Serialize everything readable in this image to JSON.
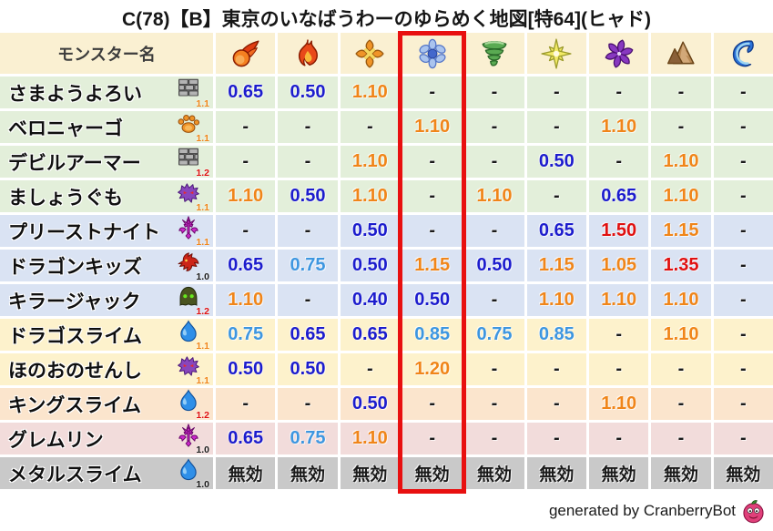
{
  "title": "C(78)【B】東京のいなばうわーのゆらめく地図[特64](ヒャド)",
  "footer": {
    "text": "generated by CranberryBot",
    "icon": "cranberry-slime-icon"
  },
  "colors": {
    "header_bg": "#faf0d2",
    "row_green": "#e3efda",
    "row_blue": "#dae3f3",
    "row_yellow": "#fdf2cc",
    "row_peach": "#fbe5cd",
    "row_pink": "#f2dcdb",
    "row_gray": "#c9c9c9",
    "value_resist_strong": "#1c1ccd",
    "value_resist_mild": "#3d96e0",
    "value_weak_mild": "#f08519",
    "value_weak_strong": "#e01010",
    "value_neutral": "#1a1a1a",
    "highlight_border": "#e81010"
  },
  "chart_data": {
    "type": "table",
    "title": "C(78)【B】東京のいなばうわーのゆらめく地図[特64](ヒャド)",
    "row_header": "モンスター名",
    "column_icons": [
      "fireball-icon",
      "flame-icon",
      "explosion-icon",
      "snowflake-icon",
      "tornado-icon",
      "spark-icon",
      "pinwheel-icon",
      "mountain-icon",
      "wave-icon"
    ],
    "highlight_column_index": 3,
    "highlight_column_icon": "snowflake-icon",
    "rows": [
      {
        "name": "さまようよろい",
        "family_icon": "brick-icon",
        "family_multiplier": "1.1",
        "multiplier_color": "orange",
        "row_color": "green",
        "values": [
          "0.65",
          "0.50",
          "1.10",
          "-",
          "-",
          "-",
          "-",
          "-",
          "-"
        ]
      },
      {
        "name": "ベロニャーゴ",
        "family_icon": "paw-icon",
        "family_multiplier": "1.1",
        "multiplier_color": "orange",
        "row_color": "green",
        "values": [
          "-",
          "-",
          "-",
          "1.10",
          "-",
          "-",
          "1.10",
          "-",
          "-"
        ]
      },
      {
        "name": "デビルアーマー",
        "family_icon": "brick-icon",
        "family_multiplier": "1.2",
        "multiplier_color": "red",
        "row_color": "green",
        "values": [
          "-",
          "-",
          "1.10",
          "-",
          "-",
          "0.50",
          "-",
          "1.10",
          "-"
        ]
      },
      {
        "name": "ましょうぐも",
        "family_icon": "bug-icon",
        "family_multiplier": "1.1",
        "multiplier_color": "orange",
        "row_color": "green",
        "values": [
          "1.10",
          "0.50",
          "1.10",
          "-",
          "1.10",
          "-",
          "0.65",
          "1.10",
          "-"
        ]
      },
      {
        "name": "プリーストナイト",
        "family_icon": "trident-icon",
        "family_multiplier": "1.1",
        "multiplier_color": "orange",
        "row_color": "blue",
        "values": [
          "-",
          "-",
          "0.50",
          "-",
          "-",
          "0.65",
          "1.50",
          "1.15",
          "-"
        ]
      },
      {
        "name": "ドラゴンキッズ",
        "family_icon": "dragon-icon",
        "family_multiplier": "1.0",
        "multiplier_color": "black",
        "row_color": "blue",
        "values": [
          "0.65",
          "0.75",
          "0.50",
          "1.15",
          "0.50",
          "1.15",
          "1.05",
          "1.35",
          "-"
        ]
      },
      {
        "name": "キラージャック",
        "family_icon": "helmet-icon",
        "family_multiplier": "1.2",
        "multiplier_color": "red",
        "row_color": "blue",
        "values": [
          "1.10",
          "-",
          "0.40",
          "0.50",
          "-",
          "1.10",
          "1.10",
          "1.10",
          "-"
        ]
      },
      {
        "name": "ドラゴスライム",
        "family_icon": "slime-icon",
        "family_multiplier": "1.1",
        "multiplier_color": "orange",
        "row_color": "yellow",
        "values": [
          "0.75",
          "0.65",
          "0.65",
          "0.85",
          "0.75",
          "0.85",
          "-",
          "1.10",
          "-"
        ]
      },
      {
        "name": "ほのおのせんし",
        "family_icon": "bug-icon",
        "family_multiplier": "1.1",
        "multiplier_color": "orange",
        "row_color": "yellow",
        "values": [
          "0.50",
          "0.50",
          "-",
          "1.20",
          "-",
          "-",
          "-",
          "-",
          "-"
        ]
      },
      {
        "name": "キングスライム",
        "family_icon": "slime-icon",
        "family_multiplier": "1.2",
        "multiplier_color": "red",
        "row_color": "peach",
        "values": [
          "-",
          "-",
          "0.50",
          "-",
          "-",
          "-",
          "1.10",
          "-",
          "-"
        ]
      },
      {
        "name": "グレムリン",
        "family_icon": "trident-icon",
        "family_multiplier": "1.0",
        "multiplier_color": "black",
        "row_color": "pink",
        "values": [
          "0.65",
          "0.75",
          "1.10",
          "-",
          "-",
          "-",
          "-",
          "-",
          "-"
        ]
      },
      {
        "name": "メタルスライム",
        "family_icon": "slime-icon",
        "family_multiplier": "1.0",
        "multiplier_color": "black",
        "row_color": "gray",
        "values": [
          "無効",
          "無効",
          "無効",
          "無効",
          "無効",
          "無効",
          "無効",
          "無効",
          "無効"
        ]
      }
    ]
  }
}
